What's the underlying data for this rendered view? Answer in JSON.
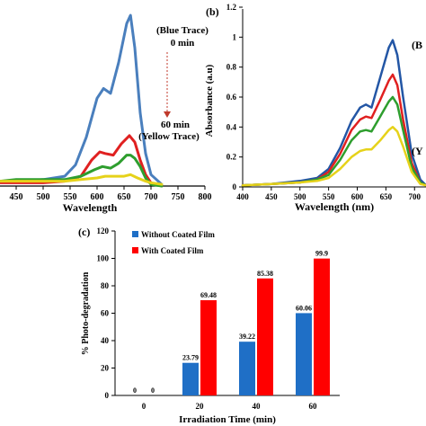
{
  "chart_data": [
    {
      "type": "line",
      "panel_label": "",
      "xlabel": "Wavelength",
      "ylabel": "",
      "xlim": [
        420,
        800
      ],
      "ylim": [
        0,
        1.1
      ],
      "xticks": [
        "450",
        "500",
        "550",
        "600",
        "650",
        "700",
        "750",
        "800"
      ],
      "xtick_values": [
        450,
        500,
        550,
        600,
        650,
        700,
        750,
        800
      ],
      "annotations": [
        "(Blue Trace)",
        "0 min",
        "60 min",
        "(Yellow Trace)"
      ],
      "series": [
        {
          "color": "#4a7fbd",
          "x": [
            420,
            450,
            500,
            540,
            560,
            580,
            600,
            612,
            625,
            640,
            655,
            662,
            670,
            680,
            690,
            700,
            720
          ],
          "y": [
            0.03,
            0.03,
            0.04,
            0.06,
            0.13,
            0.3,
            0.54,
            0.6,
            0.57,
            0.76,
            1.0,
            1.05,
            0.85,
            0.45,
            0.2,
            0.07,
            0.01
          ]
        },
        {
          "color": "#e02020",
          "x": [
            420,
            450,
            500,
            540,
            570,
            590,
            605,
            615,
            630,
            645,
            660,
            670,
            680,
            690,
            700,
            720
          ],
          "y": [
            0.02,
            0.02,
            0.02,
            0.03,
            0.06,
            0.16,
            0.21,
            0.2,
            0.19,
            0.26,
            0.31,
            0.27,
            0.16,
            0.07,
            0.02,
            0.0
          ]
        },
        {
          "color": "#2e9e2e",
          "x": [
            420,
            450,
            500,
            540,
            570,
            595,
            610,
            625,
            640,
            655,
            662,
            670,
            680,
            690,
            700,
            720
          ],
          "y": [
            0.03,
            0.04,
            0.04,
            0.04,
            0.06,
            0.1,
            0.12,
            0.11,
            0.14,
            0.19,
            0.19,
            0.17,
            0.12,
            0.05,
            0.01,
            0.0
          ]
        },
        {
          "color": "#e6d21a",
          "x": [
            420,
            450,
            500,
            540,
            570,
            600,
            615,
            630,
            650,
            662,
            675,
            690,
            700,
            720
          ],
          "y": [
            0.03,
            0.03,
            0.03,
            0.03,
            0.04,
            0.05,
            0.06,
            0.06,
            0.06,
            0.07,
            0.05,
            0.03,
            0.02,
            0.01
          ]
        }
      ]
    },
    {
      "type": "line",
      "panel_label": "(b)",
      "xlabel": "Wavelength (nm)",
      "ylabel": "Absorbance (a.u)",
      "xlim": [
        400,
        720
      ],
      "ylim": [
        0,
        1.2
      ],
      "xticks": [
        "400",
        "450",
        "500",
        "550",
        "600",
        "650",
        "700"
      ],
      "xtick_values": [
        400,
        450,
        500,
        550,
        600,
        650,
        700
      ],
      "yticks": [
        "0",
        "0.2",
        "0.4",
        "0.6",
        "0.8",
        "1",
        "1.2"
      ],
      "ytick_values": [
        0,
        0.2,
        0.4,
        0.6,
        0.8,
        1.0,
        1.2
      ],
      "annotations": [
        "(B",
        "(Y"
      ],
      "series": [
        {
          "color": "#2356a5",
          "x": [
            400,
            450,
            500,
            530,
            550,
            570,
            590,
            605,
            615,
            625,
            640,
            655,
            662,
            670,
            680,
            695,
            710,
            720
          ],
          "y": [
            0.01,
            0.02,
            0.04,
            0.06,
            0.12,
            0.26,
            0.44,
            0.53,
            0.55,
            0.53,
            0.73,
            0.93,
            0.98,
            0.88,
            0.6,
            0.22,
            0.05,
            0.01
          ]
        },
        {
          "color": "#e02020",
          "x": [
            400,
            450,
            500,
            530,
            550,
            570,
            590,
            605,
            615,
            625,
            640,
            655,
            662,
            670,
            680,
            695,
            710,
            720
          ],
          "y": [
            0.01,
            0.02,
            0.03,
            0.05,
            0.1,
            0.22,
            0.38,
            0.45,
            0.47,
            0.46,
            0.58,
            0.71,
            0.75,
            0.68,
            0.45,
            0.16,
            0.03,
            0.01
          ]
        },
        {
          "color": "#2e9e2e",
          "x": [
            400,
            450,
            500,
            530,
            550,
            570,
            590,
            605,
            615,
            625,
            640,
            655,
            662,
            670,
            680,
            695,
            710,
            720
          ],
          "y": [
            0.01,
            0.02,
            0.03,
            0.05,
            0.08,
            0.18,
            0.31,
            0.37,
            0.38,
            0.37,
            0.47,
            0.57,
            0.6,
            0.55,
            0.38,
            0.13,
            0.03,
            0.01
          ]
        },
        {
          "color": "#e6d21a",
          "x": [
            400,
            450,
            500,
            530,
            550,
            570,
            590,
            605,
            615,
            625,
            640,
            655,
            662,
            670,
            680,
            695,
            710,
            720
          ],
          "y": [
            0.01,
            0.02,
            0.03,
            0.04,
            0.06,
            0.12,
            0.2,
            0.24,
            0.25,
            0.25,
            0.31,
            0.38,
            0.4,
            0.37,
            0.27,
            0.1,
            0.02,
            0.01
          ]
        }
      ]
    },
    {
      "type": "bar",
      "panel_label": "(c)",
      "xlabel": "Irradiation Time (min)",
      "ylabel": "% Photo-degradation",
      "ylim": [
        0,
        120
      ],
      "yticks": [
        "0",
        "20",
        "40",
        "60",
        "80",
        "100",
        "120"
      ],
      "ytick_values": [
        0,
        20,
        40,
        60,
        80,
        100,
        120
      ],
      "categories": [
        "0",
        "20",
        "40",
        "60"
      ],
      "legend_position": "top-left",
      "series": [
        {
          "name": "Without Coated Film",
          "color": "#1f6fc6",
          "values": [
            0,
            23.79,
            39.22,
            60.06
          ],
          "labels": [
            "0",
            "23.79",
            "39.22",
            "60.06"
          ]
        },
        {
          "name": "With Coated Film",
          "color": "#ff0000",
          "values": [
            0,
            69.48,
            85.38,
            99.9
          ],
          "labels": [
            "0",
            "69.48",
            "85.38",
            "99.9"
          ]
        }
      ]
    }
  ]
}
